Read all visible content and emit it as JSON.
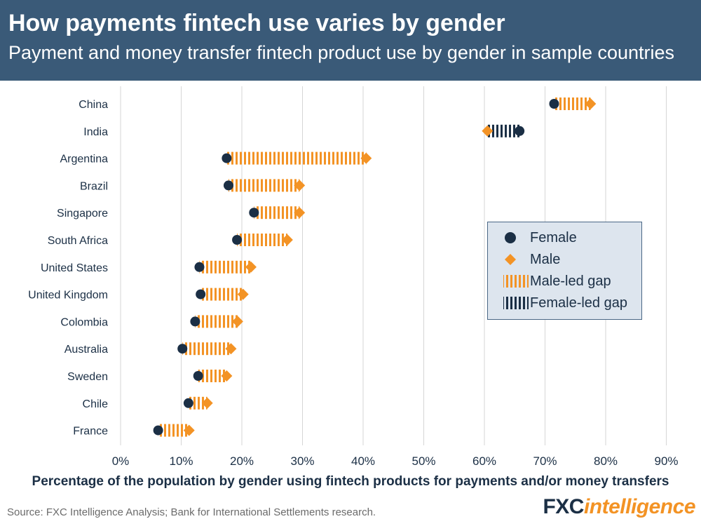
{
  "header": {
    "title": "How payments fintech use varies by gender",
    "subtitle": "Payment and money transfer fintech product use by gender in sample countries"
  },
  "footer": {
    "source": "Source: FXC Intelligence Analysis; Bank for International Settlements research.",
    "logo_part1": "FXC",
    "logo_part2": "intelligence"
  },
  "legend": {
    "female": "Female",
    "male": "Male",
    "male_gap": "Male-led gap",
    "female_gap": "Female-led gap"
  },
  "colors": {
    "female": "#1b2f45",
    "male": "#f39325",
    "header_bg": "#3a5a78",
    "gridline": "#d6d6d6"
  },
  "chart_data": {
    "type": "dumbbell",
    "xlabel": "Percentage of the population by gender using fintech products for payments and/or money transfers",
    "xlim": [
      0,
      90
    ],
    "xticks": [
      "0%",
      "10%",
      "20%",
      "30%",
      "40%",
      "50%",
      "60%",
      "70%",
      "80%",
      "90%"
    ],
    "grid": true,
    "legend_position": "right-middle",
    "categories": [
      "China",
      "India",
      "Argentina",
      "Brazil",
      "Singapore",
      "South Africa",
      "United States",
      "United Kingdom",
      "Colombia",
      "Australia",
      "Sweden",
      "Chile",
      "France"
    ],
    "series": [
      {
        "name": "Female",
        "values": [
          71.5,
          65.8,
          17.5,
          17.8,
          22.0,
          19.2,
          13.0,
          13.2,
          12.3,
          10.2,
          12.8,
          11.2,
          6.2
        ]
      },
      {
        "name": "Male",
        "values": [
          77.5,
          60.5,
          40.5,
          29.5,
          29.5,
          27.5,
          21.5,
          20.2,
          19.3,
          18.2,
          17.5,
          14.3,
          11.3
        ]
      }
    ]
  }
}
